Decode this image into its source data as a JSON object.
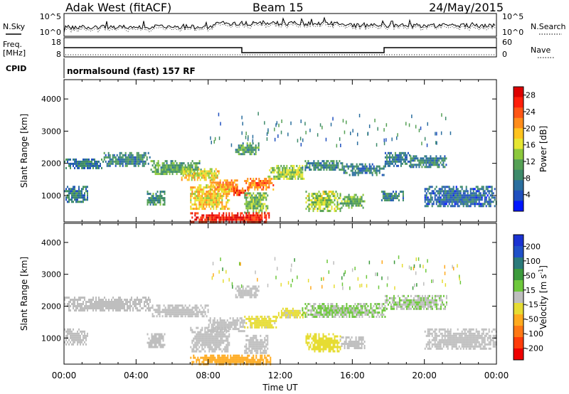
{
  "header": {
    "station": "Adak West (fitACF)",
    "beam": "Beam 15",
    "date": "24/May/2015"
  },
  "noise_panel": {
    "left_label": "N.Sky",
    "left_ticks": [
      "10^5",
      "10^0"
    ],
    "right_label": "N.Search",
    "right_ticks": [
      "10^5",
      "10^0"
    ]
  },
  "freq_panel": {
    "left_label_1": "Freq.",
    "left_label_2": "[MHz]",
    "left_ticks": [
      "18",
      "8"
    ],
    "right_label": "Nave",
    "right_ticks": [
      "60",
      "0"
    ]
  },
  "cpid": {
    "label": "CPID",
    "text": "normalsound (fast) 157 RF"
  },
  "chart_data": [
    {
      "type": "heatmap",
      "title": "Power",
      "xlabel": "",
      "ylabel": "Slant Range [km]",
      "x_tick_labels": [
        "00:00",
        "04:00",
        "08:00",
        "12:00",
        "16:00",
        "20:00",
        "00:00"
      ],
      "xlim_hours": [
        0,
        24
      ],
      "ylim": [
        180,
        4600
      ],
      "y_ticks": [
        1000,
        2000,
        3000,
        4000
      ],
      "colorbar": {
        "label": "Power [dB]",
        "ticks": [
          4,
          8,
          12,
          16,
          20,
          24,
          28
        ],
        "colors": [
          "#0016ff",
          "#1f4fbf",
          "#2a6e9e",
          "#3d8a6a",
          "#55a055",
          "#8cc83c",
          "#e6e632",
          "#ffc31e",
          "#ff8c1a",
          "#ff5514",
          "#ff1e0a",
          "#dd0000"
        ],
        "range": [
          0,
          30
        ]
      },
      "regions": [
        {
          "t0": 0.0,
          "t1": 2.2,
          "r0": 1850,
          "r1": 2150,
          "v": 7
        },
        {
          "t0": 2.2,
          "t1": 4.8,
          "r0": 1900,
          "r1": 2350,
          "v": 8
        },
        {
          "t0": 4.8,
          "t1": 7.6,
          "r0": 1650,
          "r1": 2100,
          "v": 11
        },
        {
          "t0": 6.5,
          "t1": 8.6,
          "r0": 1500,
          "r1": 1850,
          "v": 17
        },
        {
          "t0": 8.0,
          "t1": 9.6,
          "r0": 1150,
          "r1": 1500,
          "v": 21
        },
        {
          "t0": 9.4,
          "t1": 10.2,
          "r0": 1000,
          "r1": 1250,
          "v": 25
        },
        {
          "t0": 10.0,
          "t1": 11.6,
          "r0": 1200,
          "r1": 1550,
          "v": 22
        },
        {
          "t0": 11.3,
          "t1": 13.4,
          "r0": 1550,
          "r1": 1950,
          "v": 14
        },
        {
          "t0": 9.5,
          "t1": 10.8,
          "r0": 2300,
          "r1": 2650,
          "v": 10
        },
        {
          "t0": 13.2,
          "t1": 15.5,
          "r0": 1800,
          "r1": 2100,
          "v": 8
        },
        {
          "t0": 15.5,
          "t1": 17.8,
          "r0": 1650,
          "r1": 2000,
          "v": 7
        },
        {
          "t0": 17.8,
          "t1": 19.2,
          "r0": 1950,
          "r1": 2350,
          "v": 7
        },
        {
          "t0": 19.2,
          "t1": 21.2,
          "r0": 1900,
          "r1": 2250,
          "v": 8
        },
        {
          "t0": 0.0,
          "t1": 1.3,
          "r0": 800,
          "r1": 1300,
          "v": 7
        },
        {
          "t0": 4.6,
          "t1": 5.6,
          "r0": 700,
          "r1": 1150,
          "v": 9
        },
        {
          "t0": 7.0,
          "t1": 9.2,
          "r0": 600,
          "r1": 1350,
          "v": 18
        },
        {
          "t0": 10.0,
          "t1": 11.3,
          "r0": 500,
          "r1": 1100,
          "v": 13
        },
        {
          "t0": 13.4,
          "t1": 15.3,
          "r0": 550,
          "r1": 1150,
          "v": 14
        },
        {
          "t0": 15.3,
          "t1": 16.7,
          "r0": 650,
          "r1": 1050,
          "v": 12
        },
        {
          "t0": 17.6,
          "t1": 18.8,
          "r0": 850,
          "r1": 1150,
          "v": 8
        },
        {
          "t0": 20.0,
          "t1": 24.0,
          "r0": 650,
          "r1": 1300,
          "v": 6
        },
        {
          "t0": 7.0,
          "t1": 11.5,
          "r0": 180,
          "r1": 480,
          "v": 27
        }
      ]
    },
    {
      "type": "heatmap",
      "title": "Velocity",
      "xlabel": "Time UT",
      "ylabel": "Slant Range [km]",
      "x_tick_labels": [
        "00:00",
        "04:00",
        "08:00",
        "12:00",
        "16:00",
        "20:00",
        "00:00"
      ],
      "xlim_hours": [
        0,
        24
      ],
      "ylim": [
        180,
        4600
      ],
      "y_ticks": [
        1000,
        2000,
        3000,
        4000
      ],
      "colorbar": {
        "label": "Velocity [m s^-1]",
        "ticks": [
          "200",
          "100",
          "50",
          "15",
          "-15",
          "-50",
          "-100",
          "-200"
        ],
        "colors": [
          "#1a32d2",
          "#1f50c8",
          "#2a7a7a",
          "#3c9a3c",
          "#6ec83c",
          "#bebebe",
          "#e6dc32",
          "#ffaa1e",
          "#ff7814",
          "#ff3c0a",
          "#ee0000"
        ],
        "range": [
          -250,
          250
        ]
      },
      "regions": [
        {
          "t0": 0.0,
          "t1": 4.8,
          "r0": 1850,
          "r1": 2300,
          "v": 0
        },
        {
          "t0": 4.8,
          "t1": 8.0,
          "r0": 1650,
          "r1": 2050,
          "v": 0
        },
        {
          "t0": 8.0,
          "t1": 10.0,
          "r0": 1200,
          "r1": 1650,
          "v": 0
        },
        {
          "t0": 10.0,
          "t1": 11.8,
          "r0": 1300,
          "r1": 1700,
          "v": -40
        },
        {
          "t0": 11.8,
          "t1": 13.4,
          "r0": 1650,
          "r1": 1950,
          "v": -35
        },
        {
          "t0": 9.5,
          "t1": 10.8,
          "r0": 2300,
          "r1": 2650,
          "v": 0
        },
        {
          "t0": 13.2,
          "t1": 17.8,
          "r0": 1650,
          "r1": 2100,
          "v": 25
        },
        {
          "t0": 17.8,
          "t1": 21.2,
          "r0": 1900,
          "r1": 2350,
          "v": 20
        },
        {
          "t0": 0.0,
          "t1": 1.3,
          "r0": 800,
          "r1": 1300,
          "v": 0
        },
        {
          "t0": 4.6,
          "t1": 5.6,
          "r0": 700,
          "r1": 1150,
          "v": 0
        },
        {
          "t0": 7.0,
          "t1": 9.2,
          "r0": 600,
          "r1": 1350,
          "v": 0
        },
        {
          "t0": 10.0,
          "t1": 11.3,
          "r0": 500,
          "r1": 1100,
          "v": 0
        },
        {
          "t0": 13.4,
          "t1": 15.3,
          "r0": 550,
          "r1": 1150,
          "v": -45
        },
        {
          "t0": 15.3,
          "t1": 16.7,
          "r0": 650,
          "r1": 1050,
          "v": 0
        },
        {
          "t0": 20.0,
          "t1": 24.0,
          "r0": 650,
          "r1": 1300,
          "v": 0
        },
        {
          "t0": 7.0,
          "t1": 11.5,
          "r0": 180,
          "r1": 480,
          "v": -90
        }
      ]
    }
  ]
}
